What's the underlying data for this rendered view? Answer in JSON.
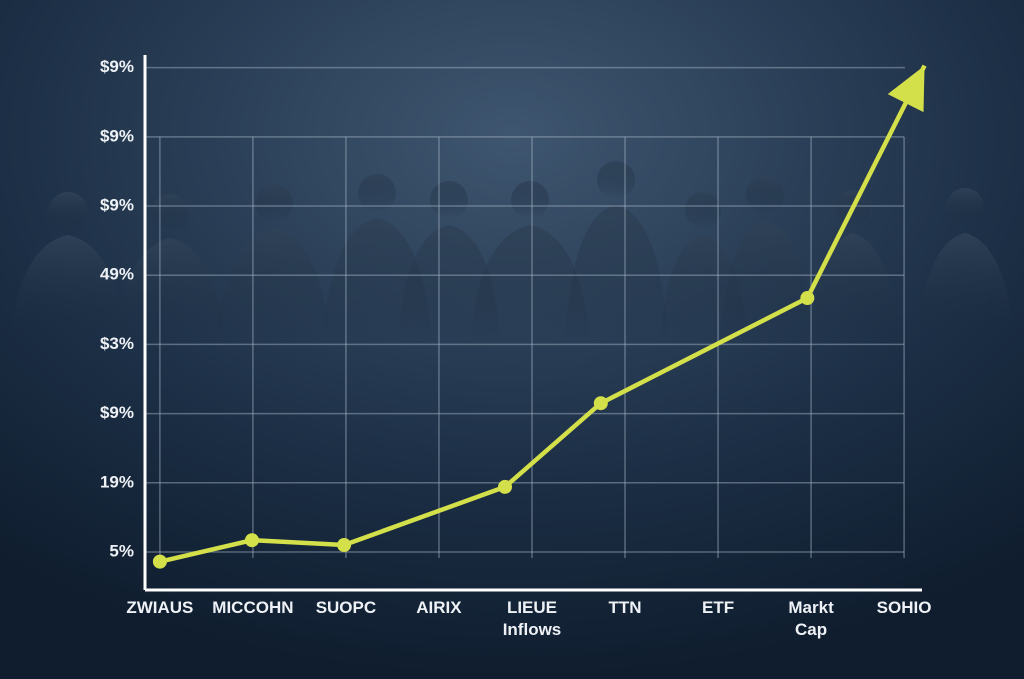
{
  "chart_data": {
    "type": "line",
    "xticks": [
      {
        "value": 0,
        "label": "ZWIAUS"
      },
      {
        "value": 1,
        "label": "MICCOHN"
      },
      {
        "value": 2,
        "label": "SUOPC"
      },
      {
        "value": 3,
        "label": "AIRIX"
      },
      {
        "value": 4,
        "label": "LIEUE\nInflows"
      },
      {
        "value": 5,
        "label": "TTN"
      },
      {
        "value": 6,
        "label": "ETF"
      },
      {
        "value": 7,
        "label": "Markt\nCap"
      },
      {
        "value": 8,
        "label": "SOHIO"
      }
    ],
    "xlim": [
      -0.16,
      8.3
    ],
    "yticks": [
      {
        "value": 0,
        "label": "5%"
      },
      {
        "value": 1,
        "label": "19%"
      },
      {
        "value": 2,
        "label": "$9%"
      },
      {
        "value": 3,
        "label": "$3%"
      },
      {
        "value": 4,
        "label": "49%"
      },
      {
        "value": 5,
        "label": "$9%"
      },
      {
        "value": 6,
        "label": "$9%"
      },
      {
        "value": 7,
        "label": "$9%"
      }
    ],
    "ylim": [
      -0.55,
      7.4
    ],
    "grid": true,
    "series": [
      {
        "color": "#d4e04a",
        "x": [
          0,
          0.99,
          1.98,
          3.71,
          4.74,
          6.96,
          8.22
        ],
        "values": [
          -0.14,
          0.17,
          0.1,
          0.94,
          2.15,
          3.67,
          7.03
        ]
      }
    ]
  }
}
